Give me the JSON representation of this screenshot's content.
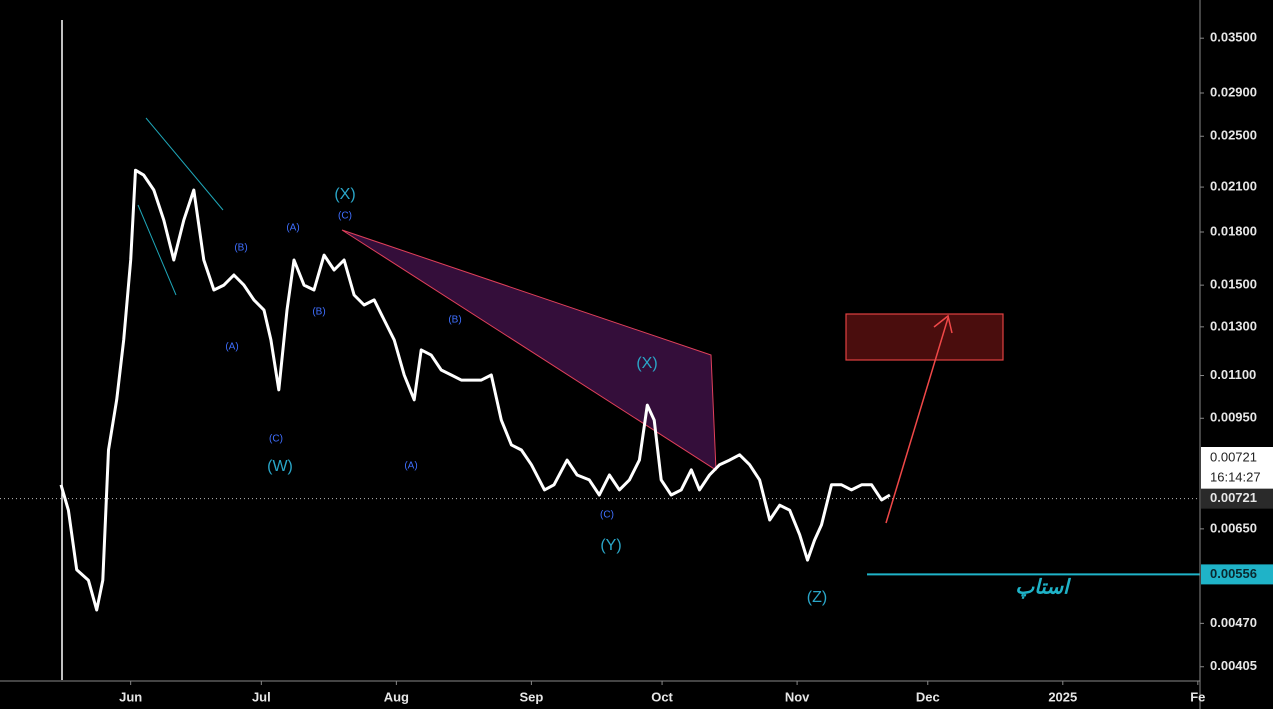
{
  "chart_data": {
    "type": "line",
    "log_scale": true,
    "color": "#ffffff",
    "x": [
      -16,
      -14.3,
      -12.4,
      -9.7,
      -7.8,
      -6.4,
      -5.1,
      -3.2,
      -1.6,
      0,
      1.1,
      3,
      5.3,
      7.6,
      9.9,
      12.2,
      14.5,
      16.8,
      19.1,
      21.4,
      23.7,
      26,
      28.3,
      30.6,
      32.2,
      34,
      35.9,
      37.5,
      39.8,
      42.1,
      44.4,
      46.7,
      49,
      51.3,
      53.6,
      55.9,
      58.2,
      60.5,
      62.8,
      65.1,
      66.7,
      69,
      71.3,
      73.6,
      75.9,
      78.2,
      80.5,
      82.8,
      85.1,
      87.4,
      89.7,
      92,
      95,
      97.2,
      100.2,
      102.5,
      105.3,
      107.6,
      109.9,
      112.2,
      114.5,
      116.8,
      118.6,
      120.2,
      121.8,
      124.1,
      126.4,
      128.7,
      130.6,
      132.9,
      135.2,
      137.5,
      139.8,
      142.1,
      144.4,
      146.7,
      149,
      151.3,
      153.6,
      155.4,
      157,
      158.6,
      160.9,
      163.2,
      165.5,
      167.8,
      170.1,
      172.4,
      174.3
    ],
    "values": [
      0.00756,
      0.00693,
      0.00565,
      0.00545,
      0.00492,
      0.00545,
      0.00852,
      0.01012,
      0.01243,
      0.01635,
      0.02225,
      0.02188,
      0.02079,
      0.01875,
      0.01635,
      0.01875,
      0.02079,
      0.01635,
      0.01475,
      0.015,
      0.01553,
      0.015,
      0.01426,
      0.01377,
      0.01243,
      0.01047,
      0.01377,
      0.01635,
      0.015,
      0.01475,
      0.01663,
      0.0158,
      0.01635,
      0.0145,
      0.01401,
      0.01426,
      0.01331,
      0.01243,
      0.01102,
      0.01012,
      0.01201,
      0.0118,
      0.01121,
      0.01102,
      0.01083,
      0.01083,
      0.01083,
      0.01102,
      0.00944,
      0.00867,
      0.00852,
      0.0081,
      0.00743,
      0.00756,
      0.00823,
      0.00782,
      0.00769,
      0.0073,
      0.00782,
      0.00743,
      0.00769,
      0.00823,
      0.00994,
      0.00944,
      0.00769,
      0.0073,
      0.00743,
      0.00796,
      0.00743,
      0.00782,
      0.0081,
      0.00823,
      0.00838,
      0.0081,
      0.00769,
      0.0067,
      0.00705,
      0.00693,
      0.00637,
      0.00584,
      0.00625,
      0.00659,
      0.00756,
      0.00756,
      0.00743,
      0.00756,
      0.00756,
      0.00718,
      0.0073
    ],
    "xlim": [
      -30,
      245.5
    ],
    "xticks": [
      {
        "value": 0,
        "label": "Jun"
      },
      {
        "value": 30,
        "label": "Jul"
      },
      {
        "value": 61,
        "label": "Aug"
      },
      {
        "value": 92,
        "label": "Sep"
      },
      {
        "value": 122,
        "label": "Oct"
      },
      {
        "value": 153,
        "label": "Nov"
      },
      {
        "value": 183,
        "label": "Dec"
      },
      {
        "value": 214,
        "label": "2025"
      },
      {
        "value": 245,
        "label": "Fe"
      }
    ],
    "ylim": [
      0.00387,
      0.0399
    ],
    "yticks": [
      {
        "value": 0.035,
        "label": "0.03500"
      },
      {
        "value": 0.029,
        "label": "0.02900"
      },
      {
        "value": 0.025,
        "label": "0.02500"
      },
      {
        "value": 0.021,
        "label": "0.02100"
      },
      {
        "value": 0.018,
        "label": "0.01800"
      },
      {
        "value": 0.015,
        "label": "0.01500"
      },
      {
        "value": 0.013,
        "label": "0.01300"
      },
      {
        "value": 0.011,
        "label": "0.01100"
      },
      {
        "value": 0.0095,
        "label": "0.00950"
      },
      {
        "value": 0.0065,
        "label": "0.00650"
      },
      {
        "value": 0.0047,
        "label": "0.00470"
      },
      {
        "value": 0.00405,
        "label": "0.00405"
      }
    ],
    "price_box": {
      "value": 0.00721,
      "countdown": "16:14:27"
    },
    "last_price": 0.00721,
    "stop_level": 0.00556,
    "annotations": [
      "(X)",
      "(C)",
      "(A)",
      "(B)",
      "(B)",
      "(A)",
      "(C)",
      "(W)",
      "(B)",
      "(A)",
      "(X)",
      "(C)",
      "(Y)",
      "(Z)",
      "استاپ"
    ]
  }
}
